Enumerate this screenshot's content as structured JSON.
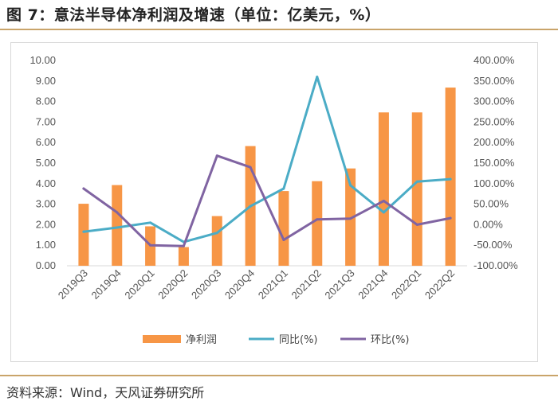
{
  "figure": {
    "title": "图 7：意法半导体净利润及增速（单位：亿美元，%）",
    "source": "资料来源：Wind，天风证券研究所"
  },
  "colors": {
    "bar": "#f79646",
    "yoy": "#4bacc6",
    "qoq": "#8064a2",
    "rule": "#c9a46a"
  },
  "chart_data": {
    "type": "bar+line",
    "categories": [
      "2019Q3",
      "2019Q4",
      "2020Q1",
      "2020Q2",
      "2020Q3",
      "2020Q4",
      "2021Q1",
      "2021Q2",
      "2021Q3",
      "2021Q4",
      "2022Q1",
      "2022Q2"
    ],
    "series": [
      {
        "name": "净利润",
        "type": "bar",
        "axis": "left",
        "values": [
          3.02,
          3.93,
          1.92,
          0.91,
          2.42,
          5.83,
          3.64,
          4.12,
          4.74,
          7.47,
          7.47,
          8.68
        ]
      },
      {
        "name": "同比(%)",
        "type": "line",
        "axis": "right",
        "values": [
          -17,
          -7,
          5,
          -42,
          -20,
          45,
          88,
          360,
          96,
          30,
          105,
          111
        ]
      },
      {
        "name": "环比(%)",
        "type": "line",
        "axis": "right",
        "values": [
          88,
          30,
          -50,
          -52,
          168,
          140,
          -37,
          13,
          15,
          58,
          0,
          16
        ]
      }
    ],
    "left_axis": {
      "min": 0,
      "max": 10,
      "step": 1,
      "ticks": [
        "0.00",
        "1.00",
        "2.00",
        "3.00",
        "4.00",
        "5.00",
        "6.00",
        "7.00",
        "8.00",
        "9.00",
        "10.00"
      ]
    },
    "right_axis": {
      "min": -100,
      "max": 400,
      "step": 50,
      "ticks": [
        "-100.00%",
        "-50.00%",
        "0.00%",
        "50.00%",
        "100.00%",
        "150.00%",
        "200.00%",
        "250.00%",
        "300.00%",
        "350.00%",
        "400.00%"
      ]
    },
    "legend_position": "bottom",
    "grid": false
  }
}
